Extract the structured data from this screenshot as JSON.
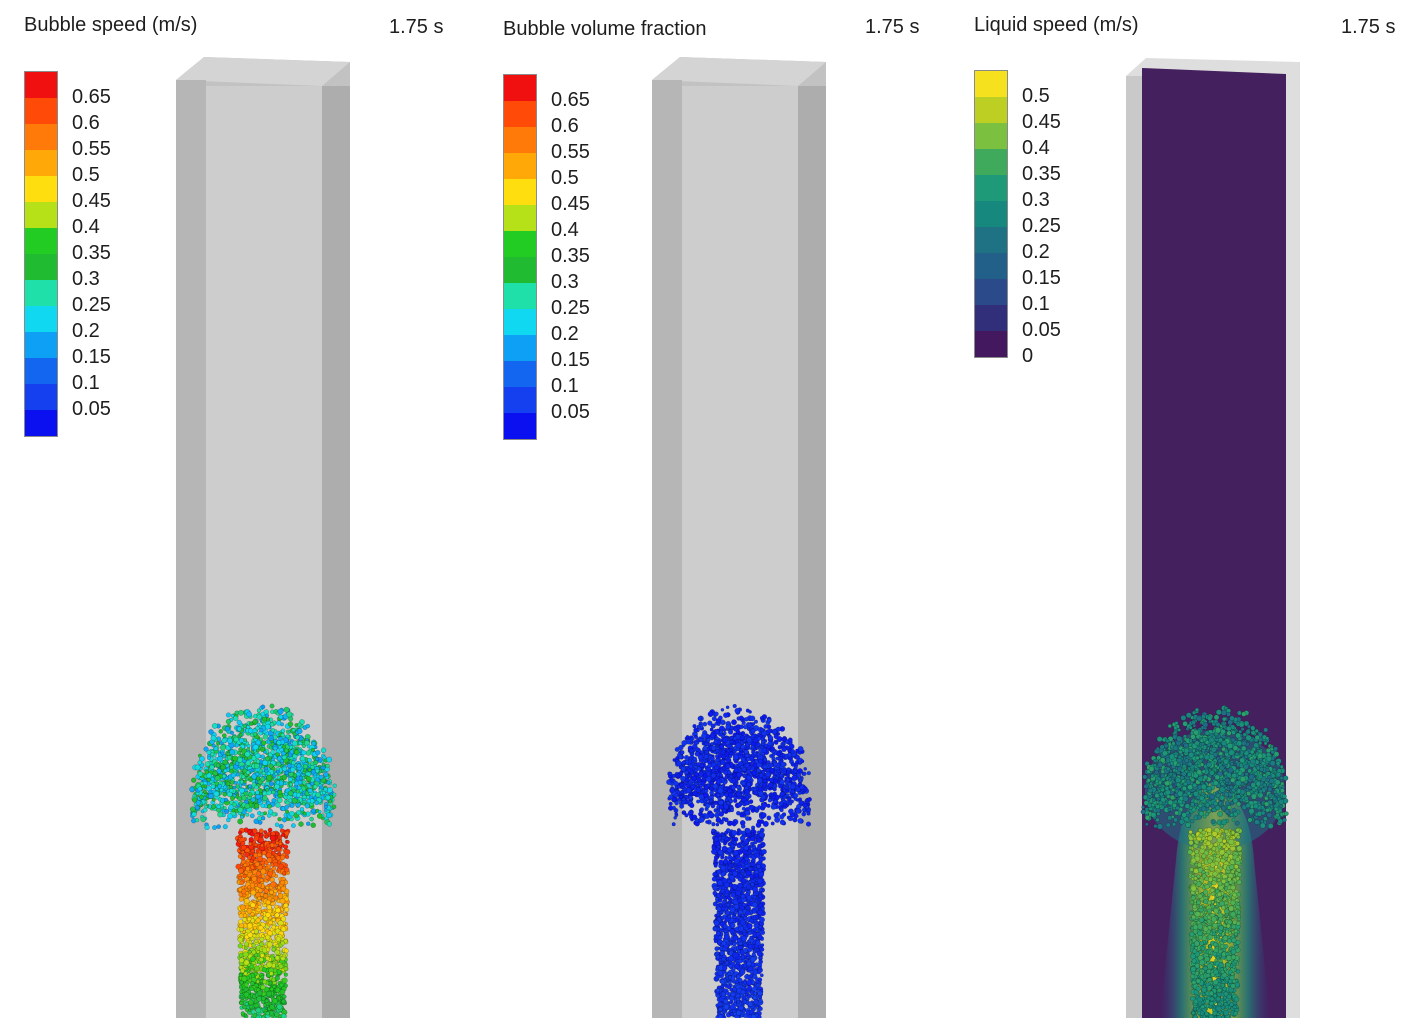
{
  "panels": [
    {
      "title": "Bubble speed (m/s)",
      "time": "1.75 s",
      "colormap": "jet",
      "legend": {
        "labels": [
          "0.65",
          "0.6",
          "0.55",
          "0.5",
          "0.45",
          "0.4",
          "0.35",
          "0.3",
          "0.25",
          "0.2",
          "0.15",
          "0.1",
          "0.05"
        ],
        "colors": [
          "#f01010",
          "#ff4a08",
          "#ff7a08",
          "#ffa808",
          "#ffde10",
          "#b6e018",
          "#22cc22",
          "#20bb30",
          "#1ee0a8",
          "#10d8f0",
          "#0ea0f4",
          "#1266f0",
          "#1440f0",
          "#0a10f0"
        ]
      }
    },
    {
      "title": "Bubble volume fraction",
      "time": "1.75 s",
      "colormap": "jet",
      "legend": {
        "labels": [
          "0.65",
          "0.6",
          "0.55",
          "0.5",
          "0.45",
          "0.4",
          "0.35",
          "0.3",
          "0.25",
          "0.2",
          "0.15",
          "0.1",
          "0.05"
        ],
        "colors": [
          "#f01010",
          "#ff4a08",
          "#ff7a08",
          "#ffa808",
          "#ffde10",
          "#b6e018",
          "#22cc22",
          "#20bb30",
          "#1ee0a8",
          "#10d8f0",
          "#0ea0f4",
          "#1266f0",
          "#1440f0",
          "#0a10f0"
        ]
      }
    },
    {
      "title": "Liquid speed (m/s)",
      "time": "1.75 s",
      "colormap": "viridis",
      "legend": {
        "labels": [
          "0.5",
          "0.45",
          "0.4",
          "0.35",
          "0.3",
          "0.25",
          "0.2",
          "0.15",
          "0.1",
          "0.05",
          "0"
        ],
        "colors": [
          "#f6e11e",
          "#bccf22",
          "#7cc040",
          "#40aa5c",
          "#1e9a78",
          "#17887e",
          "#1f7284",
          "#22608a",
          "#2a4a8a",
          "#312e7a",
          "#44185e"
        ]
      }
    }
  ]
}
